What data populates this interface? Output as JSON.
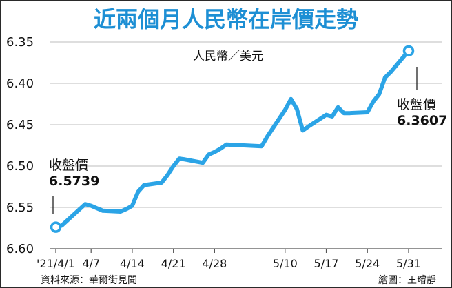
{
  "chart_data": {
    "type": "line",
    "title": "近兩個月人民幣在岸價走勢",
    "unit_label": "人民幣／美元",
    "y_inverted": true,
    "ylim": [
      6.35,
      6.6
    ],
    "y_ticks": [
      "6.35",
      "6.40",
      "6.45",
      "6.50",
      "6.55",
      "6.60"
    ],
    "x_tick_labels": [
      "'21/4/1",
      "4/7",
      "4/14",
      "4/21",
      "4/28",
      "5/10",
      "5/17",
      "5/24",
      "5/31"
    ],
    "grid": true,
    "series": [
      {
        "color": "#2ba4e6",
        "x": [
          "4/1",
          "4/2",
          "4/6",
          "4/7",
          "4/8",
          "4/9",
          "4/12",
          "4/13",
          "4/14",
          "4/15",
          "4/16",
          "4/19",
          "4/20",
          "4/21",
          "4/22",
          "4/23",
          "4/26",
          "4/27",
          "4/28",
          "4/29",
          "4/30",
          "5/6",
          "5/7",
          "5/10",
          "5/11",
          "5/12",
          "5/13",
          "5/14",
          "5/17",
          "5/18",
          "5/19",
          "5/20",
          "5/21",
          "5/24",
          "5/25",
          "5/26",
          "5/27",
          "5/28",
          "5/31"
        ],
        "y": [
          6.5739,
          6.572,
          6.546,
          6.548,
          6.551,
          6.554,
          6.555,
          6.552,
          6.548,
          6.531,
          6.523,
          6.52,
          6.511,
          6.5,
          6.491,
          6.492,
          6.496,
          6.486,
          6.483,
          6.479,
          6.474,
          6.476,
          6.464,
          6.432,
          6.419,
          6.431,
          6.457,
          6.452,
          6.438,
          6.44,
          6.429,
          6.436,
          6.436,
          6.435,
          6.422,
          6.413,
          6.393,
          6.386,
          6.3607
        ]
      }
    ],
    "annotations": [
      {
        "label": "收盤價",
        "value": "6.5739"
      },
      {
        "label": "收盤價",
        "value": "6.3607"
      }
    ]
  },
  "footer": {
    "source": "資料來源：華爾街見聞",
    "credit": "繪圖：王璿靜"
  }
}
